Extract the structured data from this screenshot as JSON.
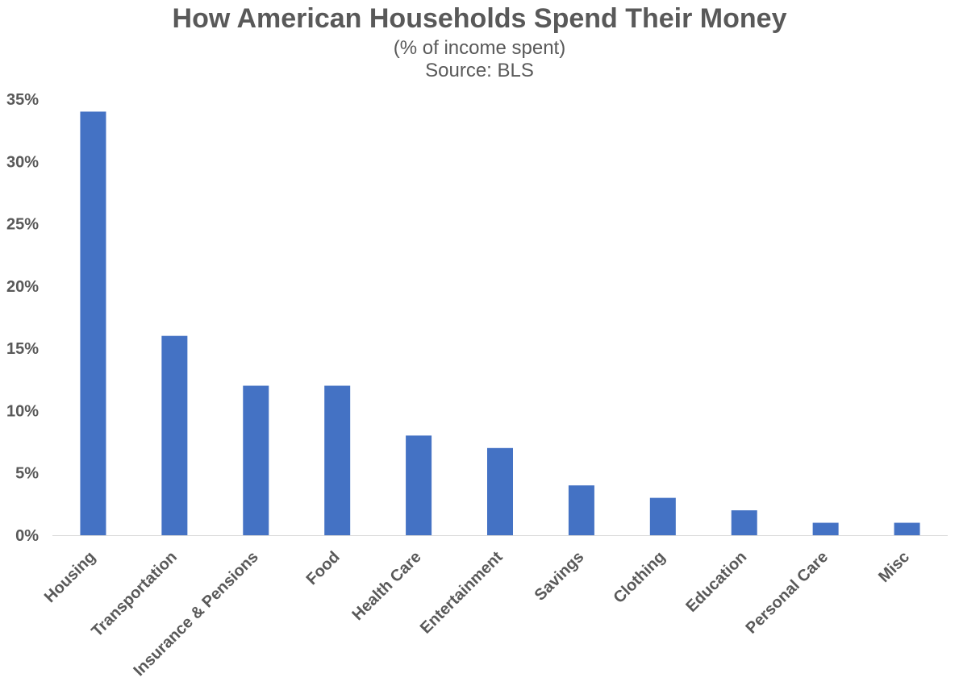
{
  "chart_data": {
    "type": "bar",
    "title": "How American Households Spend Their Money",
    "subtitle": "(% of income spent)",
    "source": "Source: BLS",
    "xlabel": "",
    "ylabel": "",
    "categories": [
      "Housing",
      "Transportation",
      "Insurance & Pensions",
      "Food",
      "Health Care",
      "Entertainment",
      "Savings",
      "Clothing",
      "Education",
      "Personal Care",
      "Misc"
    ],
    "values": [
      34,
      16,
      12,
      12,
      8,
      7,
      4,
      3,
      2,
      1,
      1
    ],
    "ylim": [
      0,
      35
    ],
    "yticks": [
      0,
      5,
      10,
      15,
      20,
      25,
      30,
      35
    ],
    "ytick_labels": [
      "0%",
      "5%",
      "10%",
      "15%",
      "20%",
      "25%",
      "30%",
      "35%"
    ],
    "grid": false,
    "legend": "none",
    "bar_color": "#4472C4"
  }
}
